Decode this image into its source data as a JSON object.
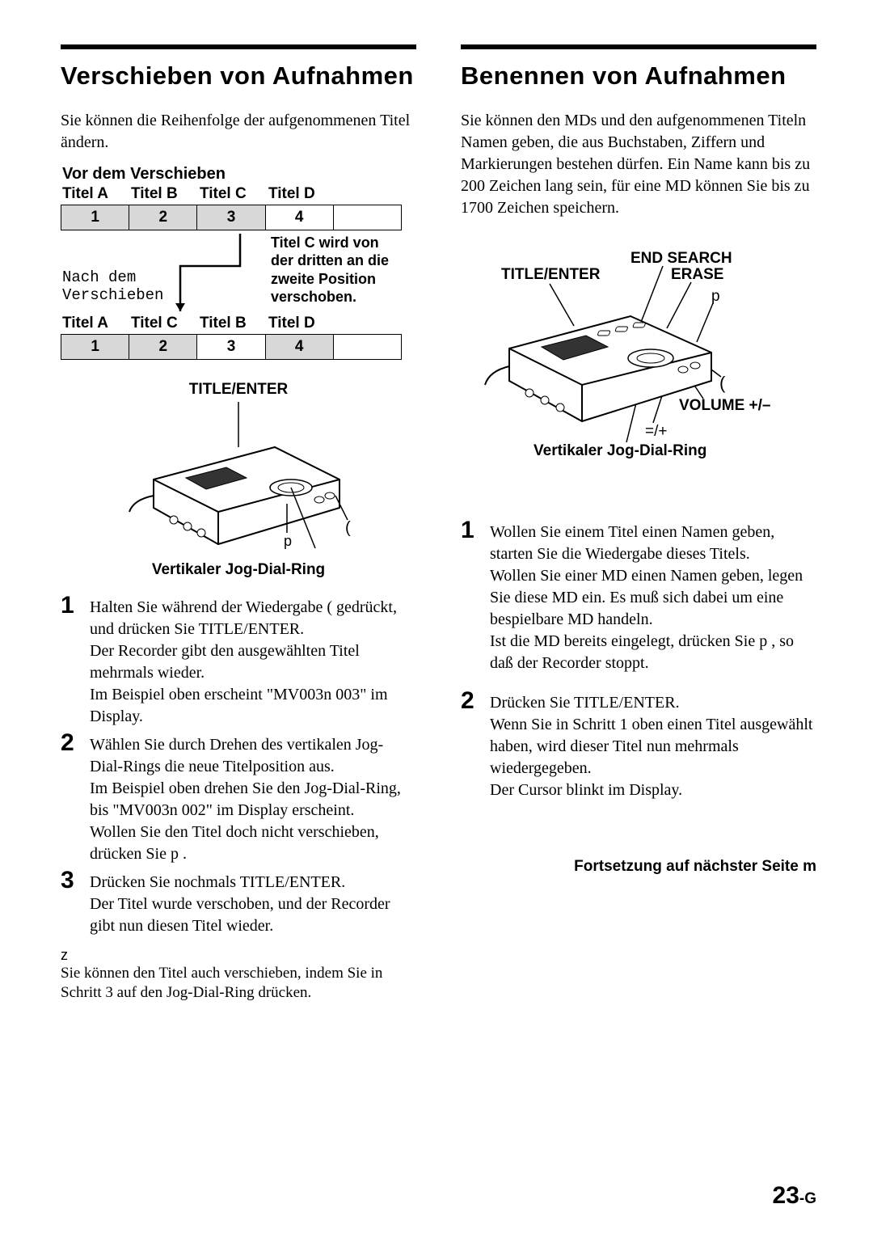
{
  "left": {
    "heading": "Verschieben von Aufnahmen",
    "intro": "Sie können die Reihenfolge der aufgenommenen Titel ändern.",
    "before_caption": "Vor dem Verschieben",
    "before_titles": [
      "Titel A",
      "Titel B",
      "Titel C",
      "Titel D"
    ],
    "before_nums": [
      "1",
      "2",
      "3",
      "4",
      ""
    ],
    "before_shaded": [
      true,
      true,
      true,
      false,
      false
    ],
    "mid_left_1": "Nach dem",
    "mid_left_2": "Verschieben",
    "mid_right": "Titel C wird von der dritten an die zweite Position verschoben.",
    "after_titles": [
      "Titel A",
      "Titel C",
      "Titel B",
      "Titel D"
    ],
    "after_nums": [
      "1",
      "2",
      "3",
      "4",
      ""
    ],
    "after_shaded": [
      true,
      true,
      false,
      true,
      false
    ],
    "fig_top_label": "TITLE/ENTER",
    "fig_p": "p",
    "fig_paren": "(",
    "fig_bottom_label": "Vertikaler Jog-Dial-Ring",
    "steps": [
      "Halten Sie während der Wiedergabe (  gedrückt, und drücken Sie TITLE/ENTER.\nDer Recorder gibt den ausgewählten Titel mehrmals wieder.\nIm Beispiel oben erscheint \"MV003n  003\" im Display.",
      "Wählen Sie durch Drehen des vertikalen Jog-Dial-Rings die neue Titelposition aus.\nIm Beispiel oben drehen Sie den Jog-Dial-Ring, bis \"MV003n  002\" im Display erscheint.\nWollen Sie den Titel doch nicht verschieben, drücken Sie p .",
      "Drücken Sie nochmals TITLE/ENTER.\nDer Titel wurde verschoben, und der Recorder gibt nun diesen Titel wieder."
    ],
    "tip_mark": "z",
    "tip": "Sie können den Titel auch verschieben, indem Sie in Schritt 3 auf den Jog-Dial-Ring drücken."
  },
  "right": {
    "heading": "Benennen von Aufnahmen",
    "intro": "Sie können den MDs und den aufgenommenen Titeln Namen geben, die aus Buchstaben, Ziffern und Markierungen bestehen dürfen. Ein Name kann bis zu 200 Zeichen lang sein, für eine MD können Sie bis zu 1700 Zeichen speichern.",
    "labels": {
      "title_enter": "TITLE/ENTER",
      "end_search": "END SEARCH",
      "erase": "ERASE",
      "p": "p",
      "paren": "(",
      "volume": "VOLUME +/–",
      "skip": "=/+",
      "jog": "Vertikaler Jog-Dial-Ring"
    },
    "steps": [
      "Wollen Sie einem Titel einen Namen geben, starten Sie die Wiedergabe dieses Titels.\nWollen Sie einer MD einen Namen geben, legen Sie diese MD ein. Es muß sich dabei um eine bespielbare MD handeln.\nIst die MD bereits eingelegt, drücken Sie p , so daß der Recorder stoppt.",
      "Drücken Sie TITLE/ENTER.\nWenn Sie in Schritt 1 oben einen Titel ausgewählt haben, wird dieser Titel nun mehrmals wiedergegeben.\nDer Cursor blinkt im Display."
    ],
    "cont": "Fortsetzung auf nächster Seite m"
  },
  "page_num": "23",
  "page_suffix": "-G",
  "colors": {
    "shade": "#d8d8d8",
    "text": "#000000",
    "bg": "#ffffff"
  }
}
